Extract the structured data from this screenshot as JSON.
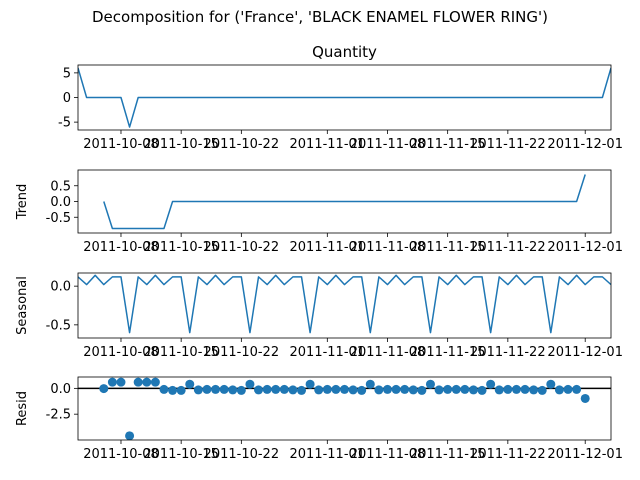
{
  "figure_title": "Decomposition for ('France', 'BLACK ENAMEL FLOWER RING')",
  "colors": {
    "series": "#1f77b4",
    "axis": "#000000",
    "zero_line": "#000000"
  },
  "chart_data": [
    {
      "id": "quantity",
      "type": "line",
      "title": "Quantity",
      "xlabel": "",
      "ylabel": "",
      "x_start": "2011-10-03",
      "xlim": [
        "2011-10-03",
        "2011-12-04"
      ],
      "ylim": [
        -6.6,
        6.6
      ],
      "x_ticks": [
        "2011-10-08",
        "2011-10-15",
        "2011-10-22",
        "2011-11-01",
        "2011-11-08",
        "2011-11-15",
        "2011-11-22",
        "2011-12-01"
      ],
      "y_ticks": [
        -5,
        0,
        5
      ],
      "x": [
        "2011-10-03",
        "2011-10-04",
        "2011-10-05",
        "2011-10-06",
        "2011-10-07",
        "2011-10-08",
        "2011-10-09",
        "2011-10-10",
        "2011-10-11",
        "2011-10-12",
        "2011-10-13",
        "2011-10-14",
        "2011-10-15",
        "2011-10-16",
        "2011-10-17",
        "2011-10-18",
        "2011-10-19",
        "2011-10-20",
        "2011-10-21",
        "2011-10-22",
        "2011-10-23",
        "2011-10-24",
        "2011-10-25",
        "2011-10-26",
        "2011-10-27",
        "2011-10-28",
        "2011-10-29",
        "2011-10-30",
        "2011-10-31",
        "2011-11-01",
        "2011-11-02",
        "2011-11-03",
        "2011-11-04",
        "2011-11-05",
        "2011-11-06",
        "2011-11-07",
        "2011-11-08",
        "2011-11-09",
        "2011-11-10",
        "2011-11-11",
        "2011-11-12",
        "2011-11-13",
        "2011-11-14",
        "2011-11-15",
        "2011-11-16",
        "2011-11-17",
        "2011-11-18",
        "2011-11-19",
        "2011-11-20",
        "2011-11-21",
        "2011-11-22",
        "2011-11-23",
        "2011-11-24",
        "2011-11-25",
        "2011-11-26",
        "2011-11-27",
        "2011-11-28",
        "2011-11-29",
        "2011-11-30",
        "2011-12-01",
        "2011-12-02",
        "2011-12-03",
        "2011-12-04"
      ],
      "values": [
        6,
        0,
        0,
        0,
        0,
        0,
        -6,
        0,
        0,
        0,
        0,
        0,
        0,
        0,
        0,
        0,
        0,
        0,
        0,
        0,
        0,
        0,
        0,
        0,
        0,
        0,
        0,
        0,
        0,
        0,
        0,
        0,
        0,
        0,
        0,
        0,
        0,
        0,
        0,
        0,
        0,
        0,
        0,
        0,
        0,
        0,
        0,
        0,
        0,
        0,
        0,
        0,
        0,
        0,
        0,
        0,
        0,
        0,
        0,
        0,
        0,
        0,
        6
      ]
    },
    {
      "id": "trend",
      "type": "line",
      "title": "",
      "xlabel": "",
      "ylabel": "Trend",
      "x_start": "2011-10-06",
      "xlim": [
        "2011-10-03",
        "2011-12-04"
      ],
      "ylim": [
        -1.0,
        1.0
      ],
      "x_ticks": [
        "2011-10-08",
        "2011-10-15",
        "2011-10-22",
        "2011-11-01",
        "2011-11-08",
        "2011-11-15",
        "2011-11-22",
        "2011-12-01"
      ],
      "y_ticks": [
        -0.5,
        0.0,
        0.5
      ],
      "x": [
        "2011-10-06",
        "2011-10-07",
        "2011-10-08",
        "2011-10-09",
        "2011-10-10",
        "2011-10-11",
        "2011-10-12",
        "2011-10-13",
        "2011-10-14",
        "2011-10-15",
        "2011-10-16",
        "2011-10-17",
        "2011-10-18",
        "2011-10-19",
        "2011-10-20",
        "2011-10-21",
        "2011-10-22",
        "2011-10-23",
        "2011-10-24",
        "2011-10-25",
        "2011-10-26",
        "2011-10-27",
        "2011-10-28",
        "2011-10-29",
        "2011-10-30",
        "2011-10-31",
        "2011-11-01",
        "2011-11-02",
        "2011-11-03",
        "2011-11-04",
        "2011-11-05",
        "2011-11-06",
        "2011-11-07",
        "2011-11-08",
        "2011-11-09",
        "2011-11-10",
        "2011-11-11",
        "2011-11-12",
        "2011-11-13",
        "2011-11-14",
        "2011-11-15",
        "2011-11-16",
        "2011-11-17",
        "2011-11-18",
        "2011-11-19",
        "2011-11-20",
        "2011-11-21",
        "2011-11-22",
        "2011-11-23",
        "2011-11-24",
        "2011-11-25",
        "2011-11-26",
        "2011-11-27",
        "2011-11-28",
        "2011-11-29",
        "2011-11-30",
        "2011-12-01"
      ],
      "values": [
        0,
        -0.857,
        -0.857,
        -0.857,
        -0.857,
        -0.857,
        -0.857,
        -0.857,
        0,
        0,
        0,
        0,
        0,
        0,
        0,
        0,
        0,
        0,
        0,
        0,
        0,
        0,
        0,
        0,
        0,
        0,
        0,
        0,
        0,
        0,
        0,
        0,
        0,
        0,
        0,
        0,
        0,
        0,
        0,
        0,
        0,
        0,
        0,
        0,
        0,
        0,
        0,
        0,
        0,
        0,
        0,
        0,
        0,
        0,
        0,
        0,
        0.857
      ]
    },
    {
      "id": "seasonal",
      "type": "line",
      "title": "",
      "xlabel": "",
      "ylabel": "Seasonal",
      "x_start": "2011-10-03",
      "xlim": [
        "2011-10-03",
        "2011-12-04"
      ],
      "ylim": [
        -0.67,
        0.17
      ],
      "x_ticks": [
        "2011-10-08",
        "2011-10-15",
        "2011-10-22",
        "2011-11-01",
        "2011-11-08",
        "2011-11-15",
        "2011-11-22",
        "2011-12-01"
      ],
      "y_ticks": [
        -0.5,
        0.0
      ],
      "x": [
        "2011-10-03",
        "2011-10-04",
        "2011-10-05",
        "2011-10-06",
        "2011-10-07",
        "2011-10-08",
        "2011-10-09",
        "2011-10-10",
        "2011-10-11",
        "2011-10-12",
        "2011-10-13",
        "2011-10-14",
        "2011-10-15",
        "2011-10-16",
        "2011-10-17",
        "2011-10-18",
        "2011-10-19",
        "2011-10-20",
        "2011-10-21",
        "2011-10-22",
        "2011-10-23",
        "2011-10-24",
        "2011-10-25",
        "2011-10-26",
        "2011-10-27",
        "2011-10-28",
        "2011-10-29",
        "2011-10-30",
        "2011-10-31",
        "2011-11-01",
        "2011-11-02",
        "2011-11-03",
        "2011-11-04",
        "2011-11-05",
        "2011-11-06",
        "2011-11-07",
        "2011-11-08",
        "2011-11-09",
        "2011-11-10",
        "2011-11-11",
        "2011-11-12",
        "2011-11-13",
        "2011-11-14",
        "2011-11-15",
        "2011-11-16",
        "2011-11-17",
        "2011-11-18",
        "2011-11-19",
        "2011-11-20",
        "2011-11-21",
        "2011-11-22",
        "2011-11-23",
        "2011-11-24",
        "2011-11-25",
        "2011-11-26",
        "2011-11-27",
        "2011-11-28",
        "2011-11-29",
        "2011-11-30",
        "2011-12-01",
        "2011-12-02",
        "2011-12-03",
        "2011-12-04"
      ],
      "values": [
        0.12,
        0.02,
        0.14,
        0.02,
        0.12,
        0.12,
        -0.6,
        0.12,
        0.02,
        0.14,
        0.02,
        0.12,
        0.12,
        -0.6,
        0.12,
        0.02,
        0.14,
        0.02,
        0.12,
        0.12,
        -0.6,
        0.12,
        0.02,
        0.14,
        0.02,
        0.12,
        0.12,
        -0.6,
        0.12,
        0.02,
        0.14,
        0.02,
        0.12,
        0.12,
        -0.6,
        0.12,
        0.02,
        0.14,
        0.02,
        0.12,
        0.12,
        -0.6,
        0.12,
        0.02,
        0.14,
        0.02,
        0.12,
        0.12,
        -0.6,
        0.12,
        0.02,
        0.14,
        0.02,
        0.12,
        0.12,
        -0.6,
        0.12,
        0.02,
        0.14,
        0.02,
        0.12,
        0.12,
        0.02
      ]
    },
    {
      "id": "resid",
      "type": "scatter",
      "title": "",
      "xlabel": "",
      "ylabel": "Resid",
      "x_start": "2011-10-06",
      "xlim": [
        "2011-10-03",
        "2011-12-04"
      ],
      "ylim": [
        -5.0,
        1.1
      ],
      "x_ticks": [
        "2011-10-08",
        "2011-10-15",
        "2011-10-22",
        "2011-11-01",
        "2011-11-08",
        "2011-11-15",
        "2011-11-22",
        "2011-12-01"
      ],
      "y_ticks": [
        -2.5,
        0.0
      ],
      "zero_line": 0,
      "x": [
        "2011-10-06",
        "2011-10-07",
        "2011-10-08",
        "2011-10-09",
        "2011-10-10",
        "2011-10-11",
        "2011-10-12",
        "2011-10-13",
        "2011-10-14",
        "2011-10-15",
        "2011-10-16",
        "2011-10-17",
        "2011-10-18",
        "2011-10-19",
        "2011-10-20",
        "2011-10-21",
        "2011-10-22",
        "2011-10-23",
        "2011-10-24",
        "2011-10-25",
        "2011-10-26",
        "2011-10-27",
        "2011-10-28",
        "2011-10-29",
        "2011-10-30",
        "2011-10-31",
        "2011-11-01",
        "2011-11-02",
        "2011-11-03",
        "2011-11-04",
        "2011-11-05",
        "2011-11-06",
        "2011-11-07",
        "2011-11-08",
        "2011-11-09",
        "2011-11-10",
        "2011-11-11",
        "2011-11-12",
        "2011-11-13",
        "2011-11-14",
        "2011-11-15",
        "2011-11-16",
        "2011-11-17",
        "2011-11-18",
        "2011-11-19",
        "2011-11-20",
        "2011-11-21",
        "2011-11-22",
        "2011-11-23",
        "2011-11-24",
        "2011-11-25",
        "2011-11-26",
        "2011-11-27",
        "2011-11-28",
        "2011-11-29",
        "2011-11-30",
        "2011-12-01"
      ],
      "values": [
        -0.02,
        0.6,
        0.6,
        -4.6,
        0.6,
        0.6,
        0.6,
        -0.1,
        -0.2,
        -0.2,
        0.4,
        -0.15,
        -0.1,
        -0.1,
        -0.1,
        -0.15,
        -0.2,
        0.4,
        -0.15,
        -0.1,
        -0.1,
        -0.1,
        -0.15,
        -0.2,
        0.4,
        -0.15,
        -0.1,
        -0.1,
        -0.1,
        -0.15,
        -0.2,
        0.4,
        -0.15,
        -0.1,
        -0.1,
        -0.1,
        -0.15,
        -0.2,
        0.4,
        -0.15,
        -0.1,
        -0.1,
        -0.1,
        -0.15,
        -0.2,
        0.4,
        -0.15,
        -0.1,
        -0.1,
        -0.1,
        -0.15,
        -0.2,
        0.4,
        -0.15,
        -0.1,
        -0.1,
        -0.98
      ]
    }
  ]
}
